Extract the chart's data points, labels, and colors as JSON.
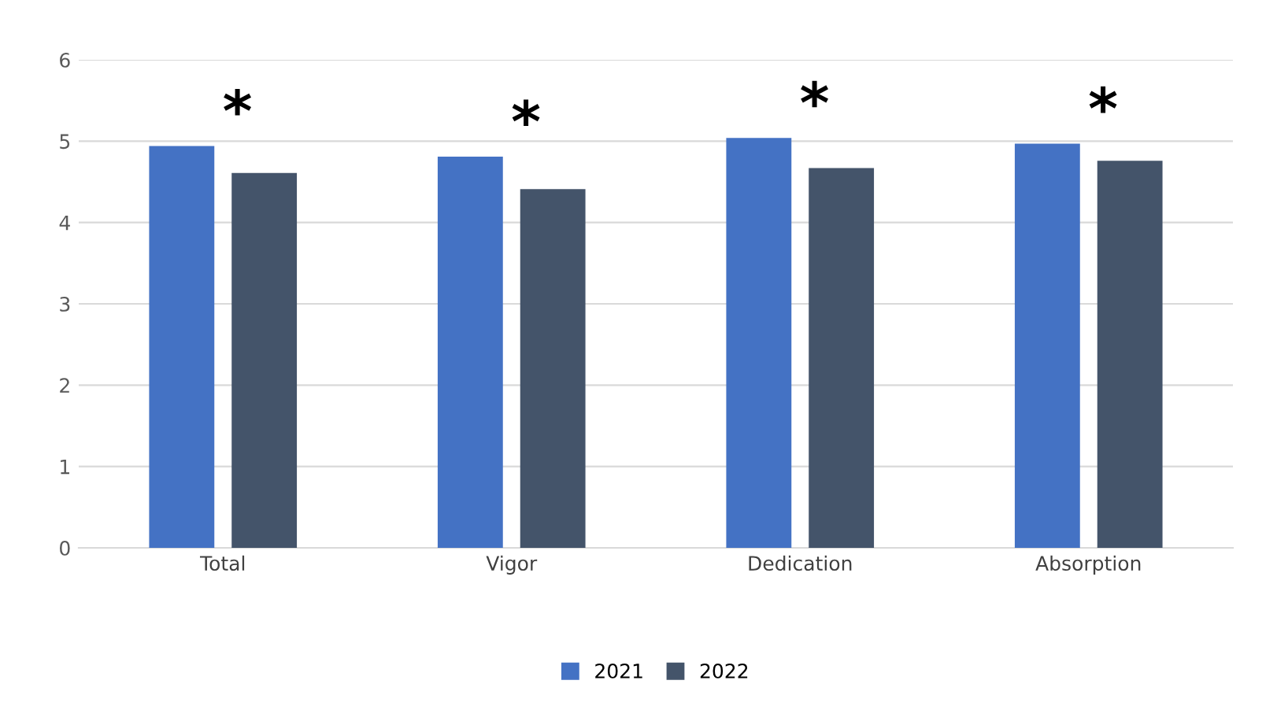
{
  "chart_data": {
    "type": "bar",
    "categories": [
      "Total",
      "Vigor",
      "Dedication",
      "Absorption"
    ],
    "series": [
      {
        "name": "2021",
        "color": "#4472c4",
        "values": [
          4.94,
          4.81,
          5.04,
          4.97
        ]
      },
      {
        "name": "2022",
        "color": "#44546a",
        "values": [
          4.61,
          4.41,
          4.67,
          4.76
        ]
      }
    ],
    "ylim": [
      0,
      6
    ],
    "yticks": [
      0,
      1,
      2,
      3,
      4,
      5,
      6
    ],
    "grid": "y",
    "legend": "bottom",
    "annotations": [
      "*",
      "*",
      "*",
      "*"
    ]
  }
}
